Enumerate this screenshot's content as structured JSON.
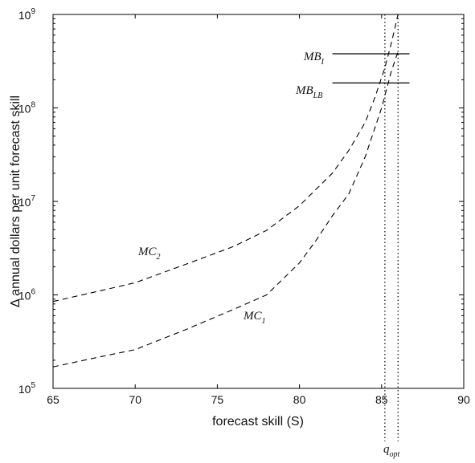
{
  "chart_data": {
    "type": "line",
    "xlabel": "forecast skill (S)",
    "ylabel": "Δ annual dollars per unit forecast skill",
    "xlim": [
      65,
      90
    ],
    "ylim": [
      100000,
      1000000000
    ],
    "yscale": "log",
    "grid": false,
    "x_ticks": [
      "65",
      "70",
      "75",
      "80",
      "85",
      "90"
    ],
    "y_ticks": [
      {
        "base": "10",
        "exp": "5"
      },
      {
        "base": "10",
        "exp": "6"
      },
      {
        "base": "10",
        "exp": "7"
      },
      {
        "base": "10",
        "exp": "8"
      },
      {
        "base": "10",
        "exp": "9"
      }
    ],
    "series": [
      {
        "label": {
          "base": "MC",
          "sub": "2"
        },
        "style": "dashed",
        "x": [
          65,
          68,
          70,
          73,
          76,
          78,
          80,
          82,
          83,
          84,
          84.6,
          85.2,
          85.6,
          86.0
        ],
        "y": [
          850000,
          1120000,
          1350000,
          2100000,
          3300000,
          4900000,
          9000000,
          20000000,
          35000000,
          70000000,
          130000000,
          270000000,
          500000000,
          1000000000
        ]
      },
      {
        "label": {
          "base": "MC",
          "sub": "1"
        },
        "style": "dashed",
        "x": [
          65,
          68,
          70,
          73,
          76,
          78,
          80,
          81,
          82,
          83,
          84,
          85,
          85.6,
          86.0
        ],
        "y": [
          170000,
          220000,
          260000,
          420000,
          700000,
          1000000,
          2200000,
          3800000,
          7000000,
          12000000,
          30000000,
          100000000,
          250000000,
          400000000
        ]
      },
      {
        "label": {
          "base": "MB",
          "sub": "I"
        },
        "style": "solid",
        "x": [
          82,
          86.7
        ],
        "y": [
          380000000,
          380000000
        ]
      },
      {
        "label": {
          "base": "MB",
          "sub": "LB"
        },
        "style": "solid",
        "x": [
          82,
          86.7
        ],
        "y": [
          185000000,
          185000000
        ]
      }
    ],
    "vlines": [
      85.2,
      86.0
    ],
    "annotations": [
      {
        "base": "q",
        "sub": "opt"
      }
    ]
  }
}
